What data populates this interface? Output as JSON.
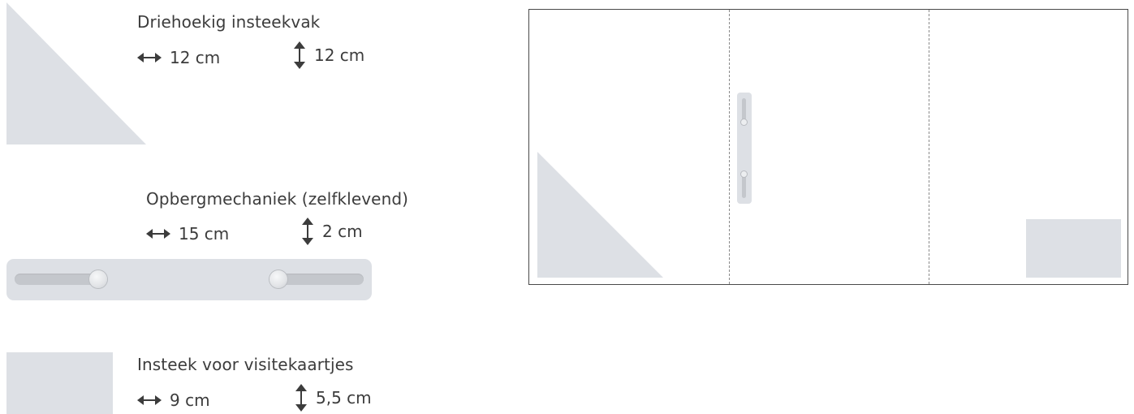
{
  "items": {
    "triangle": {
      "title": "Driehoekig insteekvak",
      "width": "12 cm",
      "height": "12 cm"
    },
    "mechanism": {
      "title": "Opbergmechaniek (zelfklevend)",
      "width": "15 cm",
      "height": "2 cm"
    },
    "card_slot": {
      "title": "Insteek voor visitekaartjes",
      "width": "9 cm",
      "height": "5,5 cm"
    }
  },
  "icons": {
    "horizontal": "horizontal-double-arrow-icon",
    "vertical": "vertical-double-arrow-icon"
  },
  "colors": {
    "swatch": "#dde0e5",
    "text": "#3c3c3c",
    "folder_border": "#4a4a4a",
    "fold_line": "#8a8a8a"
  }
}
